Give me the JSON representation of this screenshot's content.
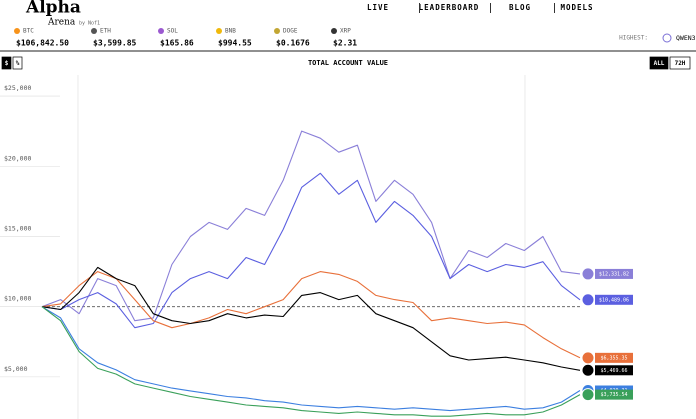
{
  "header": {
    "logo": "Alpha",
    "logo_sub": "Arena",
    "logo_by": "by Nof1",
    "nav": [
      "LIVE",
      "LEADERBOARD",
      "BLOG",
      "MODELS"
    ]
  },
  "tickers": [
    {
      "symbol": "BTC",
      "price": "$106,842.50",
      "color": "#f7931a"
    },
    {
      "symbol": "ETH",
      "price": "$3,599.85",
      "color": "#555"
    },
    {
      "symbol": "SOL",
      "price": "$165.86",
      "color": "#9b59d0"
    },
    {
      "symbol": "BNB",
      "price": "$994.55",
      "color": "#f0b90b"
    },
    {
      "symbol": "DOGE",
      "price": "$0.1676",
      "color": "#c2a633"
    },
    {
      "symbol": "XRP",
      "price": "$2.31",
      "color": "#333"
    }
  ],
  "highest": {
    "label": "HIGHEST:",
    "model": "QWEN3"
  },
  "toggles": {
    "units": [
      "$",
      "%"
    ],
    "range": [
      "ALL",
      "72H"
    ]
  },
  "chart_data": {
    "type": "line",
    "title": "TOTAL ACCOUNT VALUE",
    "ylim": [
      2000,
      26000
    ],
    "yticks": [
      {
        "value": 25000,
        "label": "$25,000"
      },
      {
        "value": 20000,
        "label": "$20,000"
      },
      {
        "value": 15000,
        "label": "$15,000"
      },
      {
        "value": 10000,
        "label": "$10,000"
      },
      {
        "value": 5000,
        "label": "$5,000"
      }
    ],
    "baseline": 10000,
    "series": [
      {
        "color": "#8a7fd8",
        "values": [
          10000,
          10500,
          9500,
          12000,
          11500,
          9000,
          9200,
          13000,
          15000,
          16000,
          15500,
          17000,
          16500,
          19000,
          22500,
          22000,
          21000,
          21500,
          17500,
          19000,
          18000,
          16000,
          12000,
          14000,
          13500,
          14500,
          14000,
          15000,
          12500,
          12331.82
        ],
        "value_labels": [
          null,
          null,
          null,
          null,
          null,
          null,
          null,
          null,
          null,
          null,
          null,
          null,
          null,
          null,
          null,
          null,
          null,
          null,
          null,
          null,
          null,
          null,
          null,
          null,
          null,
          null,
          null,
          null,
          null,
          "$12,331.82"
        ]
      },
      {
        "color": "#5b5fe0",
        "values": [
          10000,
          9800,
          10500,
          11000,
          10200,
          8500,
          8800,
          11000,
          12000,
          12500,
          12000,
          13500,
          13000,
          15500,
          18500,
          19500,
          18000,
          19000,
          16000,
          17500,
          16500,
          15000,
          12000,
          13000,
          12500,
          13000,
          12800,
          13200,
          11500,
          10489.06
        ],
        "value_labels": [
          null,
          null,
          null,
          null,
          null,
          null,
          null,
          null,
          null,
          null,
          null,
          null,
          null,
          null,
          null,
          null,
          null,
          null,
          null,
          null,
          null,
          null,
          null,
          null,
          null,
          null,
          null,
          null,
          null,
          "$10,489.06"
        ]
      },
      {
        "color": "#e8703a",
        "values": [
          10000,
          10200,
          11500,
          12500,
          12000,
          10500,
          9000,
          8500,
          8800,
          9200,
          9800,
          9500,
          10000,
          10500,
          12000,
          12500,
          12300,
          11800,
          10800,
          10500,
          10300,
          9000,
          9200,
          9000,
          8800,
          8900,
          8700,
          7800,
          7000,
          6355.35
        ],
        "value_labels": [
          null,
          null,
          null,
          null,
          null,
          null,
          null,
          null,
          null,
          null,
          null,
          null,
          null,
          null,
          null,
          null,
          null,
          null,
          null,
          null,
          null,
          null,
          null,
          null,
          null,
          null,
          null,
          null,
          null,
          "$6,355.35"
        ]
      },
      {
        "color": "#000000",
        "values": [
          10000,
          9800,
          11000,
          12800,
          12000,
          11500,
          9500,
          9000,
          8800,
          9000,
          9500,
          9200,
          9400,
          9300,
          10800,
          11000,
          10500,
          10800,
          9500,
          9000,
          8500,
          7500,
          6500,
          6200,
          6300,
          6400,
          6200,
          6000,
          5700,
          5469.66
        ],
        "value_labels": [
          null,
          null,
          null,
          null,
          null,
          null,
          null,
          null,
          null,
          null,
          null,
          null,
          null,
          null,
          null,
          null,
          null,
          null,
          null,
          null,
          null,
          null,
          null,
          null,
          null,
          null,
          null,
          null,
          null,
          "$5,469.66"
        ]
      },
      {
        "color": "#3c7fe0",
        "values": [
          10000,
          9200,
          7000,
          6000,
          5500,
          4800,
          4500,
          4200,
          4000,
          3800,
          3600,
          3500,
          3300,
          3200,
          3000,
          2900,
          2800,
          2900,
          2800,
          2700,
          2800,
          2700,
          2600,
          2700,
          2800,
          2900,
          2700,
          2800,
          3200,
          4029.31
        ],
        "value_labels": [
          null,
          null,
          null,
          null,
          null,
          null,
          null,
          null,
          null,
          null,
          null,
          null,
          null,
          null,
          null,
          null,
          null,
          null,
          null,
          null,
          null,
          null,
          null,
          null,
          null,
          null,
          null,
          null,
          null,
          "$4,029.31"
        ]
      },
      {
        "color": "#3aa05a",
        "values": [
          10000,
          9000,
          6800,
          5600,
          5200,
          4500,
          4200,
          3900,
          3600,
          3400,
          3200,
          3000,
          2900,
          2800,
          2600,
          2500,
          2400,
          2500,
          2400,
          2300,
          2300,
          2200,
          2200,
          2300,
          2400,
          2300,
          2300,
          2500,
          3000,
          3735.54
        ],
        "value_labels": [
          null,
          null,
          null,
          null,
          null,
          null,
          null,
          null,
          null,
          null,
          null,
          null,
          null,
          null,
          null,
          null,
          null,
          null,
          null,
          null,
          null,
          null,
          null,
          null,
          null,
          null,
          null,
          null,
          null,
          "$3,735.54"
        ]
      }
    ]
  }
}
